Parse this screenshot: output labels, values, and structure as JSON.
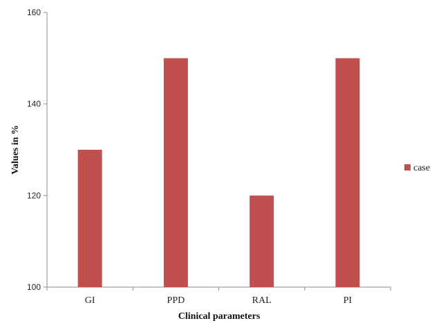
{
  "chart_data": {
    "type": "bar",
    "categories": [
      "GI",
      "PPD",
      "RAL",
      "PI"
    ],
    "series": [
      {
        "name": "case",
        "values": [
          130,
          150,
          120,
          150
        ],
        "color": "#c0504d"
      }
    ],
    "xlabel": "Clinical parameters",
    "ylabel": "Values in %",
    "ylim": [
      100,
      160
    ],
    "yticks": [
      100,
      120,
      140,
      160
    ],
    "grid": false,
    "legend_position": "right"
  }
}
